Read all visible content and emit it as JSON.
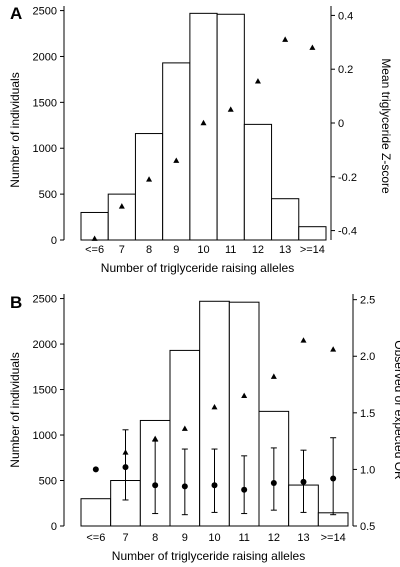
{
  "figure": {
    "panel_labels": [
      "A",
      "B"
    ]
  },
  "chart_data": [
    {
      "type": "bar",
      "panel": "A",
      "categories": [
        "<=6",
        "7",
        "8",
        "9",
        "10",
        "11",
        "12",
        "13",
        ">=14"
      ],
      "xlabel": "Number of triglyceride raising alleles",
      "ylabel": "Number of individuals",
      "y2label": "Mean triglyceride Z-score",
      "ylim": [
        0,
        2550
      ],
      "yticks": [
        0,
        500,
        1000,
        1500,
        2000,
        2500
      ],
      "y2lim": [
        -0.435,
        0.435
      ],
      "y2ticks": [
        -0.4,
        -0.2,
        0,
        0.2,
        0.4
      ],
      "y2tick_labels": [
        "-0.4",
        "-0.2",
        "0",
        "0.2",
        "0.4"
      ],
      "series": [
        {
          "kind": "bar",
          "axis": "left",
          "values": [
            300,
            500,
            1160,
            1930,
            2470,
            2460,
            1260,
            450,
            145
          ]
        },
        {
          "kind": "triangle",
          "axis": "right",
          "values": [
            -0.43,
            -0.31,
            -0.21,
            -0.14,
            0.0,
            0.05,
            0.155,
            0.31,
            0.28
          ]
        }
      ]
    },
    {
      "type": "bar",
      "panel": "B",
      "categories": [
        "<=6",
        "7",
        "8",
        "9",
        "10",
        "11",
        "12",
        "13",
        ">=14"
      ],
      "xlabel": "Number of triglyceride raising alleles",
      "ylabel": "Number of individuals",
      "y2label": "Observed or expected OR",
      "ylim": [
        0,
        2550
      ],
      "yticks": [
        0,
        500,
        1000,
        1500,
        2000,
        2500
      ],
      "y2lim": [
        0.5,
        2.55
      ],
      "y2ticks": [
        0.5,
        1.0,
        1.5,
        2.0,
        2.5
      ],
      "y2tick_labels": [
        "0.5",
        "1.0",
        "1.5",
        "2.0",
        "2.5"
      ],
      "series": [
        {
          "kind": "bar",
          "axis": "left",
          "values": [
            300,
            500,
            1160,
            1930,
            2470,
            2460,
            1260,
            450,
            145
          ]
        },
        {
          "kind": "triangle",
          "axis": "right",
          "values": [
            null,
            1.15,
            1.27,
            1.36,
            1.55,
            1.65,
            1.82,
            2.14,
            2.06
          ]
        },
        {
          "kind": "circle",
          "axis": "right",
          "values": [
            1.0,
            1.02,
            0.86,
            0.85,
            0.86,
            0.82,
            0.88,
            0.89,
            0.92
          ],
          "err_low": [
            null,
            0.73,
            0.61,
            0.6,
            0.62,
            0.61,
            0.64,
            0.62,
            0.6
          ],
          "err_high": [
            null,
            1.35,
            1.25,
            1.18,
            1.18,
            1.12,
            1.19,
            1.17,
            1.28
          ]
        }
      ]
    }
  ]
}
